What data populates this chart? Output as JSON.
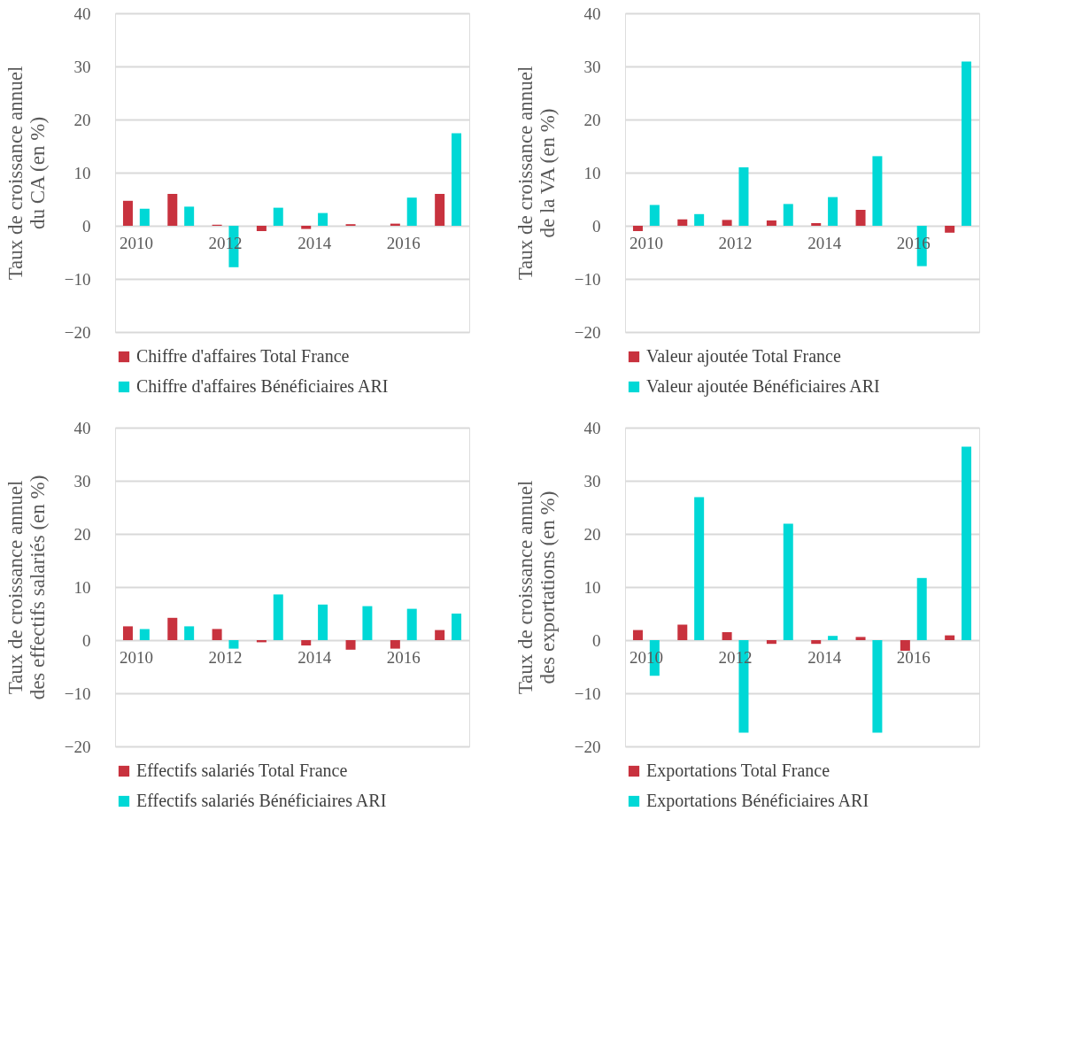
{
  "chart_data": [
    {
      "type": "bar",
      "ylabel": "Taux de croissance annuel\ndu CA (en %)",
      "categories": [
        "2010",
        null,
        "2012",
        null,
        "2014",
        null,
        "2016",
        null
      ],
      "ylim": [
        -20,
        40
      ],
      "yticks": [
        -20,
        -10,
        0,
        10,
        20,
        30,
        40
      ],
      "grid": "y",
      "legend": "bottom",
      "series": [
        {
          "name": "Chiffre d'affaires Total France",
          "color": "#c8323e",
          "values": [
            4.7,
            6.0,
            0.2,
            -1.0,
            -0.6,
            0.3,
            0.4,
            6.0
          ]
        },
        {
          "name": "Chiffre d'affaires Bénéficiaires ARI",
          "color": "#00d8d6",
          "values": [
            3.2,
            3.6,
            -7.8,
            3.4,
            2.4,
            null,
            5.3,
            17.4
          ]
        }
      ]
    },
    {
      "type": "bar",
      "ylabel": "Taux de croissance annuel\nde la VA (en %)",
      "categories": [
        "2010",
        null,
        "2012",
        null,
        "2014",
        null,
        "2016",
        null
      ],
      "ylim": [
        -20,
        40
      ],
      "yticks": [
        -20,
        -10,
        0,
        10,
        20,
        30,
        40
      ],
      "grid": "y",
      "legend": "bottom",
      "series": [
        {
          "name": "Valeur ajoutée Total France",
          "color": "#c8323e",
          "values": [
            -1.0,
            1.2,
            1.1,
            1.0,
            0.5,
            3.0,
            null,
            -1.3
          ]
        },
        {
          "name": "Valeur ajoutée Bénéficiaires ARI",
          "color": "#00d8d6",
          "values": [
            3.9,
            2.2,
            11.0,
            4.1,
            5.4,
            13.1,
            -7.6,
            30.9
          ]
        }
      ]
    },
    {
      "type": "bar",
      "ylabel": "Taux de croissance annuel\ndes effectifs salariés (en %)",
      "categories": [
        "2010",
        null,
        "2012",
        null,
        "2014",
        null,
        "2016",
        null
      ],
      "ylim": [
        -20,
        40
      ],
      "yticks": [
        -20,
        -10,
        0,
        10,
        20,
        30,
        40
      ],
      "grid": "y",
      "legend": "bottom",
      "series": [
        {
          "name": "Effectifs salariés Total France",
          "color": "#c8323e",
          "values": [
            2.6,
            4.2,
            2.1,
            -0.4,
            -1.0,
            -1.8,
            -1.6,
            1.9
          ]
        },
        {
          "name": "Effectifs salariés Bénéficiaires ARI",
          "color": "#00d8d6",
          "values": [
            2.1,
            2.6,
            -1.6,
            8.6,
            6.7,
            6.4,
            5.9,
            5.0
          ]
        }
      ]
    },
    {
      "type": "bar",
      "ylabel": "Taux de croissance annuel\ndes exportations  (en %)",
      "categories": [
        "2010",
        null,
        "2012",
        null,
        "2014",
        null,
        "2016",
        null
      ],
      "ylim": [
        -20,
        40
      ],
      "yticks": [
        -20,
        -10,
        0,
        10,
        20,
        30,
        40
      ],
      "grid": "y",
      "legend": "bottom",
      "series": [
        {
          "name": "Exportations Total France",
          "color": "#c8323e",
          "values": [
            1.9,
            2.9,
            1.5,
            -0.7,
            -0.7,
            0.6,
            -2.0,
            0.9
          ]
        },
        {
          "name": "Exportations Bénéficiaires ARI",
          "color": "#00d8d6",
          "values": [
            -6.7,
            26.9,
            -17.4,
            21.9,
            0.8,
            -17.4,
            11.7,
            36.4
          ]
        }
      ]
    }
  ]
}
